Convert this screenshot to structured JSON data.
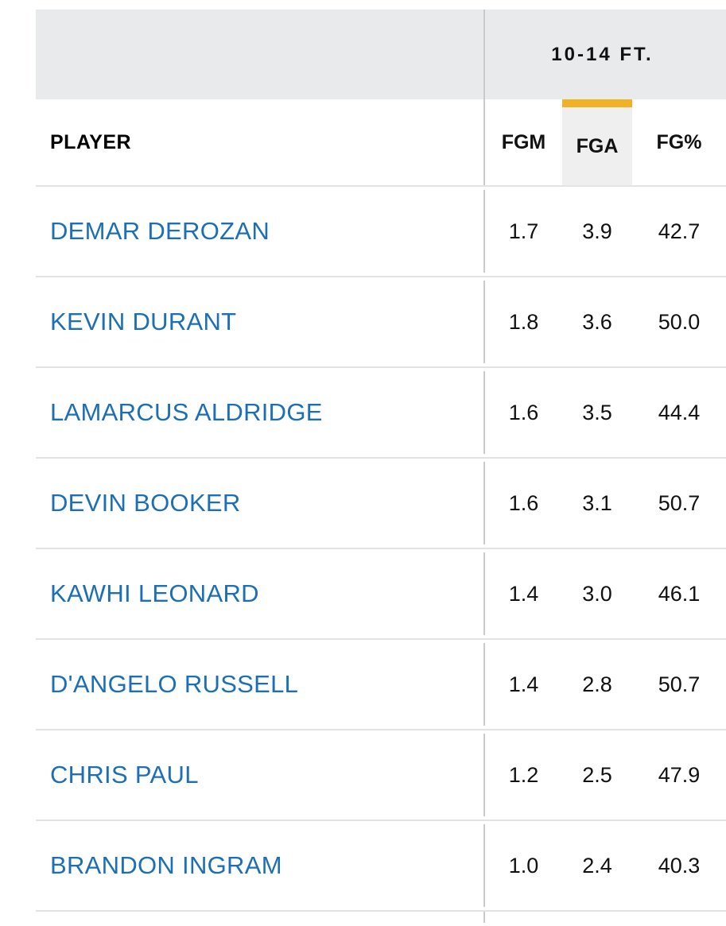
{
  "table": {
    "group_header": "10-14 FT.",
    "columns": {
      "player": "PLAYER",
      "fgm": "FGM",
      "fga": "FGA",
      "fg_pct": "FG%"
    },
    "sorted_column": "FGA",
    "accent_color": "#f1b125",
    "link_color": "#1d6fb5",
    "rows": [
      {
        "player": "DEMAR DEROZAN",
        "fgm": "1.7",
        "fga": "3.9",
        "fg_pct": "42.7"
      },
      {
        "player": "KEVIN DURANT",
        "fgm": "1.8",
        "fga": "3.6",
        "fg_pct": "50.0"
      },
      {
        "player": "LAMARCUS ALDRIDGE",
        "fgm": "1.6",
        "fga": "3.5",
        "fg_pct": "44.4"
      },
      {
        "player": "DEVIN BOOKER",
        "fgm": "1.6",
        "fga": "3.1",
        "fg_pct": "50.7"
      },
      {
        "player": "KAWHI LEONARD",
        "fgm": "1.4",
        "fga": "3.0",
        "fg_pct": "46.1"
      },
      {
        "player": "D'ANGELO RUSSELL",
        "fgm": "1.4",
        "fga": "2.8",
        "fg_pct": "50.7"
      },
      {
        "player": "CHRIS PAUL",
        "fgm": "1.2",
        "fga": "2.5",
        "fg_pct": "47.9"
      },
      {
        "player": "BRANDON INGRAM",
        "fgm": "1.0",
        "fga": "2.4",
        "fg_pct": "40.3"
      }
    ]
  }
}
